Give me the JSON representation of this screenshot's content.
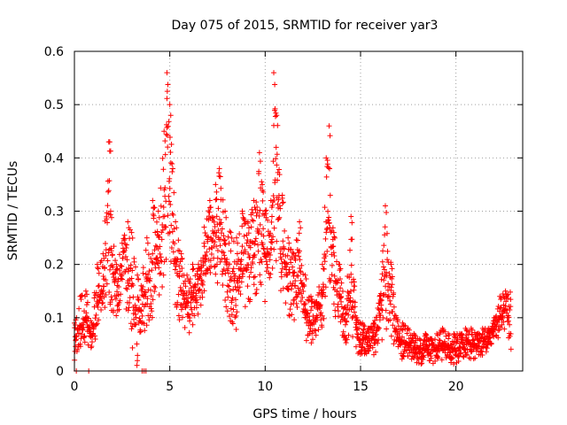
{
  "chart_data": {
    "type": "scatter",
    "title": "Day 075 of 2015, SRMTID for receiver yar3",
    "xlabel": "GPS time / hours",
    "ylabel": "SRMTID / TECUs",
    "xlim": [
      0,
      23.5
    ],
    "ylim": [
      0,
      0.6
    ],
    "xticks": [
      0,
      5,
      10,
      15,
      20
    ],
    "yticks": [
      0,
      0.1,
      0.2,
      0.3,
      0.4,
      0.5,
      0.6
    ],
    "xtick_labels": [
      "0",
      "5",
      "10",
      "15",
      "20"
    ],
    "ytick_labels": [
      "0",
      "0.1",
      "0.2",
      "0.3",
      "0.4",
      "0.5",
      "0.6"
    ],
    "grid": true,
    "marker": "+",
    "marker_color": "#ff0000",
    "envelope_note": "approximate upper/lower extent of the dense point cloud",
    "series": [
      {
        "name": "SRMTID",
        "x": [
          0.0,
          0.3,
          0.6,
          0.9,
          1.2,
          1.5,
          1.8,
          1.85,
          1.9,
          2.2,
          2.5,
          2.8,
          3.0,
          3.3,
          3.5,
          3.8,
          4.1,
          4.4,
          4.7,
          4.85,
          5.0,
          5.3,
          5.6,
          5.9,
          6.2,
          6.5,
          6.8,
          7.1,
          7.4,
          7.6,
          7.9,
          8.2,
          8.5,
          8.8,
          9.1,
          9.4,
          9.7,
          9.85,
          10.0,
          10.3,
          10.45,
          10.6,
          10.9,
          11.2,
          11.5,
          11.8,
          12.1,
          12.4,
          12.7,
          13.0,
          13.2,
          13.35,
          13.6,
          13.9,
          14.2,
          14.5,
          14.8,
          15.1,
          15.4,
          15.7,
          16.0,
          16.3,
          16.6,
          16.9,
          17.2,
          17.5,
          17.8,
          18.1,
          18.4,
          18.7,
          19.0,
          19.3,
          19.6,
          19.9,
          20.2,
          20.5,
          20.8,
          21.1,
          21.4,
          21.7,
          22.0,
          22.3,
          22.6,
          22.9
        ],
        "upper": [
          0.09,
          0.14,
          0.15,
          0.09,
          0.2,
          0.22,
          0.43,
          0.43,
          0.3,
          0.2,
          0.24,
          0.28,
          0.26,
          0.18,
          0.16,
          0.25,
          0.32,
          0.3,
          0.45,
          0.56,
          0.5,
          0.28,
          0.22,
          0.18,
          0.2,
          0.2,
          0.27,
          0.32,
          0.35,
          0.38,
          0.3,
          0.26,
          0.25,
          0.3,
          0.28,
          0.32,
          0.41,
          0.35,
          0.3,
          0.32,
          0.56,
          0.48,
          0.33,
          0.25,
          0.22,
          0.28,
          0.18,
          0.14,
          0.13,
          0.2,
          0.4,
          0.46,
          0.26,
          0.2,
          0.12,
          0.29,
          0.1,
          0.09,
          0.08,
          0.09,
          0.14,
          0.31,
          0.2,
          0.1,
          0.09,
          0.08,
          0.07,
          0.06,
          0.07,
          0.06,
          0.07,
          0.08,
          0.07,
          0.07,
          0.07,
          0.08,
          0.08,
          0.07,
          0.08,
          0.08,
          0.1,
          0.14,
          0.15,
          0.15
        ],
        "lower": [
          0.0,
          0.03,
          0.05,
          0.03,
          0.06,
          0.09,
          0.1,
          0.12,
          0.1,
          0.1,
          0.12,
          0.1,
          0.05,
          0.0,
          0.07,
          0.08,
          0.09,
          0.12,
          0.16,
          0.2,
          0.18,
          0.12,
          0.08,
          0.06,
          0.08,
          0.1,
          0.14,
          0.16,
          0.18,
          0.15,
          0.12,
          0.09,
          0.07,
          0.1,
          0.12,
          0.13,
          0.16,
          0.14,
          0.12,
          0.14,
          0.22,
          0.18,
          0.13,
          0.1,
          0.08,
          0.12,
          0.05,
          0.04,
          0.06,
          0.08,
          0.12,
          0.14,
          0.1,
          0.08,
          0.05,
          0.06,
          0.03,
          0.03,
          0.03,
          0.03,
          0.04,
          0.08,
          0.06,
          0.02,
          0.02,
          0.02,
          0.02,
          0.01,
          0.02,
          0.01,
          0.02,
          0.02,
          0.02,
          0.01,
          0.02,
          0.02,
          0.02,
          0.02,
          0.03,
          0.03,
          0.06,
          0.06,
          0.08,
          0.03
        ]
      }
    ],
    "zero_points_x": [
      0.1,
      0.75,
      3.55,
      3.65,
      3.75
    ]
  }
}
